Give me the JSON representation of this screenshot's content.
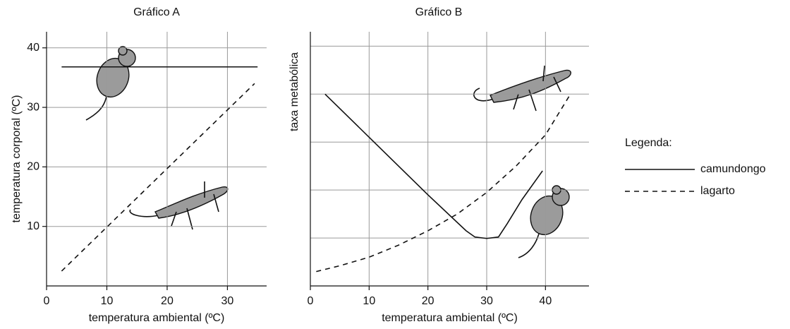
{
  "chart_data": [
    {
      "type": "line",
      "title": "Gráfico A",
      "x_label": "temperatura ambiental (ºC)",
      "y_label": "temperatura corporal (ºC)",
      "xlim": [
        0,
        36.5
      ],
      "xticks": [
        0,
        10,
        20,
        30
      ],
      "ylim": [
        0,
        42.7
      ],
      "yticks": [
        10,
        20,
        30,
        40
      ],
      "grid": true,
      "series": [
        {
          "name": "camundongo",
          "color": "#111111",
          "dashed": false,
          "x": [
            2.5,
            35
          ],
          "values": [
            36.8,
            36.8
          ]
        },
        {
          "name": "lagarto",
          "color": "#111111",
          "dashed": true,
          "x": [
            2.5,
            34.5
          ],
          "values": [
            2.5,
            34
          ]
        }
      ]
    },
    {
      "type": "line",
      "title": "Gráfico B",
      "x_label": "temperatura ambiental (ºC)",
      "y_label": "taxa metabólica",
      "xlim": [
        0,
        47.4
      ],
      "xticks": [
        0,
        10,
        20,
        30,
        40
      ],
      "ylim": [
        0,
        5.3
      ],
      "ygrid": [
        1,
        2,
        3,
        4,
        5
      ],
      "grid": true,
      "series": [
        {
          "color": "#111111",
          "dashed": false,
          "x": [
            2.5,
            10,
            20,
            26.5,
            28,
            30,
            32,
            33.5,
            36,
            39.5
          ],
          "values": [
            4,
            3.1,
            1.9,
            1.15,
            1.02,
            0.99,
            1.02,
            1.3,
            1.8,
            2.4
          ]
        },
        {
          "color": "#111111",
          "dashed": true,
          "x": [
            1,
            5,
            10,
            15,
            20,
            25,
            30,
            35,
            40,
            44
          ],
          "values": [
            0.3,
            0.42,
            0.6,
            0.85,
            1.15,
            1.5,
            1.95,
            2.5,
            3.15,
            3.95
          ]
        }
      ]
    }
  ],
  "legend": {
    "title": "Legenda:"
  }
}
